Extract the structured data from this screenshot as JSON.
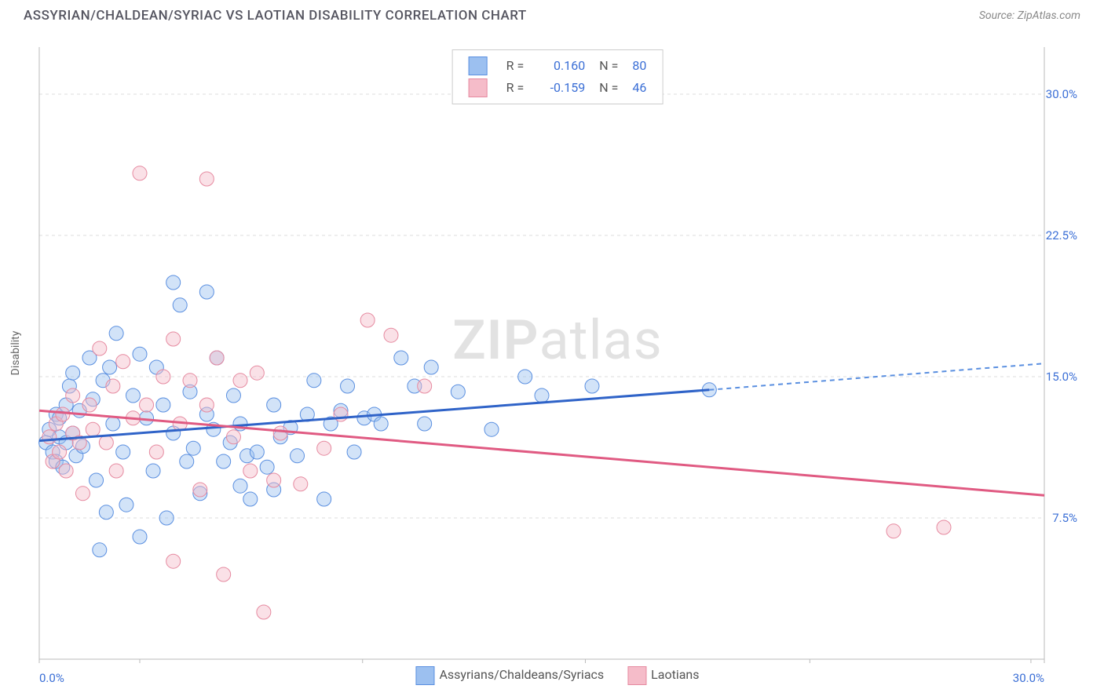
{
  "header": {
    "title": "ASSYRIAN/CHALDEAN/SYRIAC VS LAOTIAN DISABILITY CORRELATION CHART",
    "source": "Source: ZipAtlas.com"
  },
  "chart": {
    "type": "scatter",
    "ylabel": "Disability",
    "xlim": [
      0,
      30
    ],
    "ylim": [
      0,
      32.5
    ],
    "yticks": [
      {
        "v": 7.5,
        "l": "7.5%"
      },
      {
        "v": 15,
        "l": "15.0%"
      },
      {
        "v": 22.5,
        "l": "22.5%"
      },
      {
        "v": 30,
        "l": "30.0%"
      }
    ],
    "xticks_minor": [
      3,
      9.65,
      16.3,
      23,
      29.6
    ],
    "xticks": [
      {
        "v": 0,
        "l": "0.0%"
      },
      {
        "v": 30,
        "l": "30.0%"
      }
    ],
    "grid_color": "#dddddd",
    "axis_color": "#bbbbbb",
    "background": "#ffffff",
    "marker_radius": 9,
    "marker_stroke_width": 1,
    "marker_opacity": 0.45,
    "series": [
      {
        "name": "Assyrians/Chaldeans/Syriacs",
        "fill": "#9cc0f0",
        "stroke": "#5a8fe0",
        "line_color": "#2f63c8",
        "line_width": 3,
        "dash_color": "#5a8fe0",
        "r_value": "0.160",
        "n_value": "80",
        "reg": {
          "x1": 0,
          "y1": 11.6,
          "x2": 20,
          "y2": 14.3
        },
        "reg_ext": {
          "x1": 20,
          "y1": 14.3,
          "x2": 30,
          "y2": 15.7
        },
        "points": [
          [
            0.2,
            11.5
          ],
          [
            0.3,
            12.2
          ],
          [
            0.4,
            11.0
          ],
          [
            0.5,
            13.0
          ],
          [
            0.5,
            10.5
          ],
          [
            0.6,
            11.8
          ],
          [
            0.6,
            12.8
          ],
          [
            0.7,
            10.2
          ],
          [
            0.8,
            13.5
          ],
          [
            0.8,
            11.5
          ],
          [
            0.9,
            14.5
          ],
          [
            1.0,
            12.0
          ],
          [
            1.0,
            15.2
          ],
          [
            1.1,
            10.8
          ],
          [
            1.2,
            13.2
          ],
          [
            1.3,
            11.3
          ],
          [
            1.5,
            16.0
          ],
          [
            1.6,
            13.8
          ],
          [
            1.7,
            9.5
          ],
          [
            1.8,
            5.8
          ],
          [
            1.9,
            14.8
          ],
          [
            2.0,
            7.8
          ],
          [
            2.1,
            15.5
          ],
          [
            2.2,
            12.5
          ],
          [
            2.3,
            17.3
          ],
          [
            2.5,
            11.0
          ],
          [
            2.6,
            8.2
          ],
          [
            2.8,
            14.0
          ],
          [
            3.0,
            16.2
          ],
          [
            3.0,
            6.5
          ],
          [
            3.2,
            12.8
          ],
          [
            3.4,
            10.0
          ],
          [
            3.5,
            15.5
          ],
          [
            3.7,
            13.5
          ],
          [
            3.8,
            7.5
          ],
          [
            4.0,
            20.0
          ],
          [
            4.0,
            12.0
          ],
          [
            4.2,
            18.8
          ],
          [
            4.4,
            10.5
          ],
          [
            4.5,
            14.2
          ],
          [
            4.6,
            11.2
          ],
          [
            4.8,
            8.8
          ],
          [
            5.0,
            19.5
          ],
          [
            5.0,
            13.0
          ],
          [
            5.2,
            12.2
          ],
          [
            5.3,
            16.0
          ],
          [
            5.5,
            10.5
          ],
          [
            5.7,
            11.5
          ],
          [
            5.8,
            14.0
          ],
          [
            6.0,
            9.2
          ],
          [
            6.0,
            12.5
          ],
          [
            6.2,
            10.8
          ],
          [
            6.3,
            8.5
          ],
          [
            6.5,
            11.0
          ],
          [
            6.8,
            10.2
          ],
          [
            7.0,
            13.5
          ],
          [
            7.0,
            9.0
          ],
          [
            7.2,
            11.8
          ],
          [
            7.5,
            12.3
          ],
          [
            7.7,
            10.8
          ],
          [
            8.0,
            13.0
          ],
          [
            8.2,
            14.8
          ],
          [
            8.5,
            8.5
          ],
          [
            8.7,
            12.5
          ],
          [
            9.0,
            13.2
          ],
          [
            9.2,
            14.5
          ],
          [
            9.4,
            11.0
          ],
          [
            9.7,
            12.8
          ],
          [
            10.0,
            13.0
          ],
          [
            10.2,
            12.5
          ],
          [
            10.8,
            16.0
          ],
          [
            11.2,
            14.5
          ],
          [
            11.5,
            12.5
          ],
          [
            11.7,
            15.5
          ],
          [
            12.5,
            14.2
          ],
          [
            13.5,
            12.2
          ],
          [
            14.5,
            15.0
          ],
          [
            15.0,
            14.0
          ],
          [
            16.5,
            14.5
          ],
          [
            20.0,
            14.3
          ]
        ]
      },
      {
        "name": "Laotians",
        "fill": "#f5bcc9",
        "stroke": "#e68aa0",
        "line_color": "#e05a82",
        "line_width": 3,
        "r_value": "-0.159",
        "n_value": "46",
        "reg": {
          "x1": 0,
          "y1": 13.2,
          "x2": 30,
          "y2": 8.7
        },
        "points": [
          [
            0.3,
            11.8
          ],
          [
            0.4,
            10.5
          ],
          [
            0.5,
            12.5
          ],
          [
            0.6,
            11.0
          ],
          [
            0.7,
            13.0
          ],
          [
            0.8,
            10.0
          ],
          [
            1.0,
            12.0
          ],
          [
            1.0,
            14.0
          ],
          [
            1.2,
            11.5
          ],
          [
            1.3,
            8.8
          ],
          [
            1.5,
            13.5
          ],
          [
            1.6,
            12.2
          ],
          [
            1.8,
            16.5
          ],
          [
            2.0,
            11.5
          ],
          [
            2.2,
            14.5
          ],
          [
            2.3,
            10.0
          ],
          [
            2.5,
            15.8
          ],
          [
            2.8,
            12.8
          ],
          [
            3.0,
            25.8
          ],
          [
            3.2,
            13.5
          ],
          [
            3.5,
            11.0
          ],
          [
            3.7,
            15.0
          ],
          [
            4.0,
            17.0
          ],
          [
            4.0,
            5.2
          ],
          [
            4.2,
            12.5
          ],
          [
            4.5,
            14.8
          ],
          [
            4.8,
            9.0
          ],
          [
            5.0,
            13.5
          ],
          [
            5.0,
            25.5
          ],
          [
            5.3,
            16.0
          ],
          [
            5.5,
            4.5
          ],
          [
            5.8,
            11.8
          ],
          [
            6.0,
            14.8
          ],
          [
            6.3,
            10.0
          ],
          [
            6.5,
            15.2
          ],
          [
            6.7,
            2.5
          ],
          [
            7.0,
            9.5
          ],
          [
            7.2,
            12.0
          ],
          [
            7.8,
            9.3
          ],
          [
            8.5,
            11.2
          ],
          [
            9.0,
            13.0
          ],
          [
            9.8,
            18.0
          ],
          [
            10.5,
            17.2
          ],
          [
            11.5,
            14.5
          ],
          [
            25.5,
            6.8
          ],
          [
            27.0,
            7.0
          ]
        ]
      }
    ],
    "watermark": {
      "zip": "ZIP",
      "rest": "atlas"
    }
  },
  "bottom_legend": [
    {
      "label": "Assyrians/Chaldeans/Syriacs"
    },
    {
      "label": "Laotians"
    }
  ],
  "top_legend": {
    "col_r": "R =",
    "col_n": "N ="
  }
}
